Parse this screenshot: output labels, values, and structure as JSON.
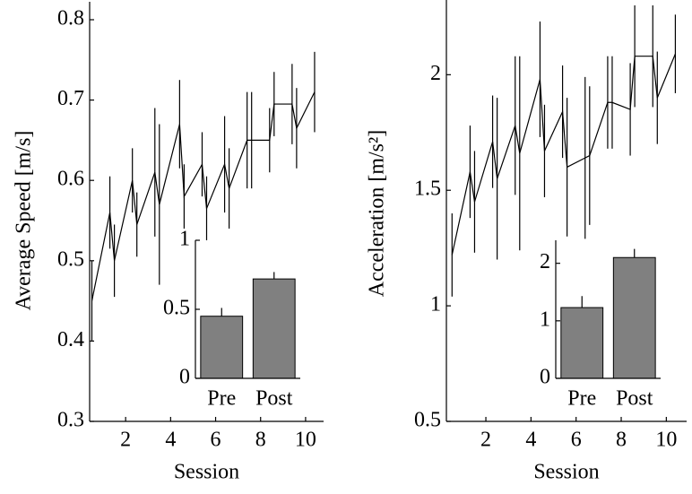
{
  "chart_data": [
    {
      "type": "line",
      "ylabel": "Average Speed [m/s]",
      "xlabel": "Session",
      "x": [
        0.5,
        1.3,
        1.5,
        2.3,
        2.5,
        3.3,
        3.5,
        4.4,
        4.6,
        5.4,
        5.6,
        6.4,
        6.6,
        7.4,
        7.6,
        8.4,
        8.6,
        9.4,
        9.6,
        10.4
      ],
      "series": [
        {
          "color": "#000000",
          "values": [
            0.45,
            0.56,
            0.5,
            0.6,
            0.545,
            0.61,
            0.57,
            0.67,
            0.58,
            0.62,
            0.565,
            0.62,
            0.59,
            0.65,
            0.65,
            0.65,
            0.695,
            0.695,
            0.665,
            0.71
          ],
          "errors": [
            0.05,
            0.045,
            0.045,
            0.04,
            0.04,
            0.08,
            0.1,
            0.055,
            0.04,
            0.04,
            0.04,
            0.06,
            0.05,
            0.06,
            0.06,
            0.04,
            0.04,
            0.05,
            0.05,
            0.05
          ]
        }
      ],
      "xlim": [
        0.4,
        10.8
      ],
      "xticks": [
        2,
        4,
        6,
        8,
        10
      ],
      "ylim": [
        0.3,
        0.8
      ],
      "yticks": [
        0.3,
        0.4,
        0.5,
        0.6,
        0.7,
        0.8
      ]
    },
    {
      "type": "bar",
      "categories": [
        "Pre",
        "Post"
      ],
      "values": [
        0.45,
        0.72
      ],
      "errors": [
        0.06,
        0.05
      ],
      "color": "#808080",
      "ylim": [
        0,
        1
      ],
      "yticks": [
        0,
        0.5,
        1
      ]
    },
    {
      "type": "line",
      "ylabel": "Acceleration [m/s²]",
      "xlabel": "Session",
      "x": [
        0.5,
        1.3,
        1.5,
        2.3,
        2.5,
        3.3,
        3.5,
        4.4,
        4.6,
        5.4,
        5.6,
        6.4,
        6.6,
        7.4,
        7.6,
        8.4,
        8.6,
        9.4,
        9.6,
        10.4
      ],
      "series": [
        {
          "color": "#000000",
          "values": [
            1.22,
            1.58,
            1.45,
            1.71,
            1.55,
            1.78,
            1.66,
            1.98,
            1.67,
            1.84,
            1.6,
            1.64,
            1.65,
            1.88,
            1.88,
            1.85,
            2.08,
            2.08,
            1.9,
            2.09
          ],
          "errors": [
            0.18,
            0.2,
            0.22,
            0.2,
            0.35,
            0.3,
            0.42,
            0.25,
            0.2,
            0.2,
            0.3,
            0.35,
            0.3,
            0.2,
            0.2,
            0.2,
            0.22,
            0.22,
            0.2,
            0.17
          ]
        }
      ],
      "xlim": [
        0.25,
        10.9
      ],
      "xticks": [
        2,
        4,
        6,
        8,
        10
      ],
      "ylim": [
        0.5,
        2.3
      ],
      "yticks": [
        0.5,
        1,
        1.5,
        2
      ]
    },
    {
      "type": "bar",
      "categories": [
        "Pre",
        "Post"
      ],
      "values": [
        1.23,
        2.1
      ],
      "errors": [
        0.2,
        0.15
      ],
      "color": "#808080",
      "ylim": [
        0,
        2.4
      ],
      "yticks": [
        0,
        1,
        2
      ]
    }
  ]
}
